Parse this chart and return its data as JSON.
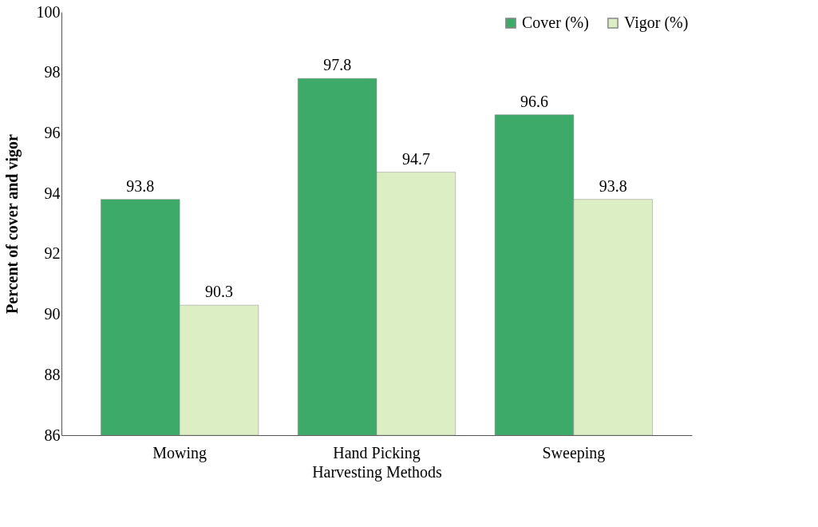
{
  "chart_data": {
    "type": "bar",
    "xlabel": "Harvesting Methods",
    "ylabel": "Percent of cover and vigor",
    "categories": [
      "Mowing",
      "Hand Picking",
      "Sweeping"
    ],
    "series": [
      {
        "name": "Cover (%)",
        "color": "#3daa6a",
        "values": [
          93.8,
          97.8,
          96.6
        ]
      },
      {
        "name": "Vigor (%)",
        "color": "#dcefc4",
        "values": [
          90.3,
          94.7,
          93.8
        ]
      }
    ],
    "ylim": [
      86,
      100
    ],
    "yticks": [
      86,
      88,
      90,
      92,
      94,
      96,
      98,
      100
    ],
    "data_labels": true,
    "grid": false,
    "legend": "top right"
  }
}
